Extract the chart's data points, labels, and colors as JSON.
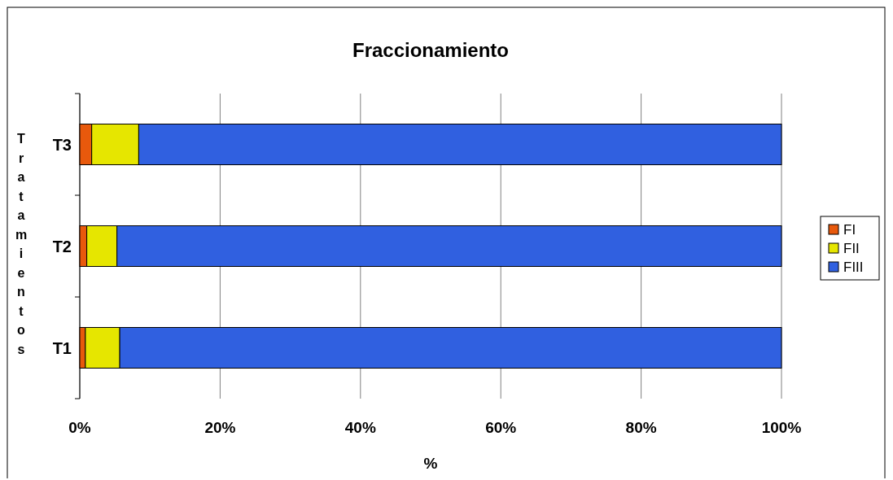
{
  "chart_data": {
    "type": "bar",
    "orientation": "horizontal",
    "stacked": true,
    "title": "Fraccionamiento",
    "xlabel": "%",
    "ylabel": "Tratamientos",
    "categories": [
      "T3",
      "T2",
      "T1"
    ],
    "series": [
      {
        "name": "FI",
        "color": "#e8590c",
        "values": [
          1.7,
          1.0,
          0.8
        ]
      },
      {
        "name": "FII",
        "color": "#e6e600",
        "values": [
          6.7,
          4.3,
          4.9
        ]
      },
      {
        "name": "FIII",
        "color": "#3060e0",
        "values": [
          91.6,
          94.7,
          94.3
        ]
      }
    ],
    "xlim": [
      0,
      100
    ],
    "xticks": [
      {
        "value": 0,
        "label": "0%"
      },
      {
        "value": 20,
        "label": "20%"
      },
      {
        "value": 40,
        "label": "40%"
      },
      {
        "value": 60,
        "label": "60%"
      },
      {
        "value": 80,
        "label": "80%"
      },
      {
        "value": 100,
        "label": "100%"
      }
    ],
    "grid": "x",
    "legend": "right"
  }
}
